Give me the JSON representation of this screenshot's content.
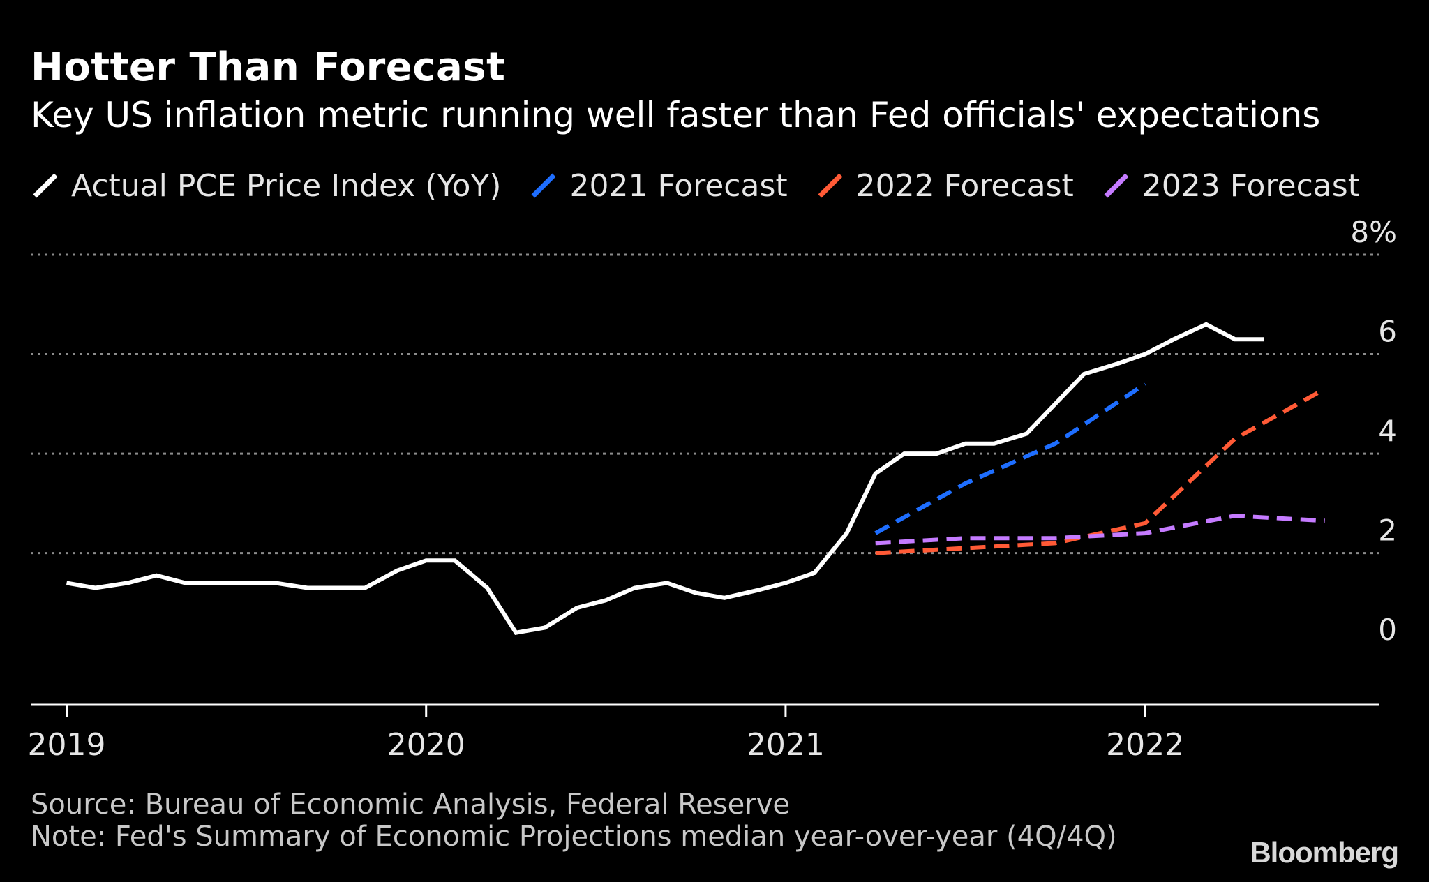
{
  "chart_data": {
    "type": "line",
    "title": "Hotter Than Forecast",
    "subtitle": "Key US inflation metric running well faster than Fed officials' expectations",
    "xlabel": "",
    "ylabel": "",
    "ylim": [
      -1.05,
      8
    ],
    "y_ticks": [
      {
        "value": 8,
        "label": "8%"
      },
      {
        "value": 6,
        "label": "6"
      },
      {
        "value": 4,
        "label": "4"
      },
      {
        "value": 2,
        "label": "2"
      },
      {
        "value": 0,
        "label": "0"
      }
    ],
    "gridlines": [
      8,
      6,
      4,
      2
    ],
    "x_ticks": [
      {
        "value": 2019.0,
        "label": "2019"
      },
      {
        "value": 2020.0,
        "label": "2020"
      },
      {
        "value": 2021.0,
        "label": "2021"
      },
      {
        "value": 2022.0,
        "label": "2022"
      }
    ],
    "xlim": [
      2018.9,
      2022.65
    ],
    "series": [
      {
        "name": "Actual PCE Price Index (YoY)",
        "color": "#ffffff",
        "dashed": false,
        "points": [
          [
            2019.0,
            1.4
          ],
          [
            2019.08,
            1.3
          ],
          [
            2019.17,
            1.4
          ],
          [
            2019.25,
            1.55
          ],
          [
            2019.33,
            1.4
          ],
          [
            2019.42,
            1.4
          ],
          [
            2019.5,
            1.4
          ],
          [
            2019.58,
            1.4
          ],
          [
            2019.67,
            1.3
          ],
          [
            2019.75,
            1.3
          ],
          [
            2019.83,
            1.3
          ],
          [
            2019.92,
            1.65
          ],
          [
            2020.0,
            1.85
          ],
          [
            2020.08,
            1.85
          ],
          [
            2020.17,
            1.3
          ],
          [
            2020.25,
            0.4
          ],
          [
            2020.33,
            0.5
          ],
          [
            2020.42,
            0.9
          ],
          [
            2020.5,
            1.05
          ],
          [
            2020.58,
            1.3
          ],
          [
            2020.67,
            1.4
          ],
          [
            2020.75,
            1.2
          ],
          [
            2020.83,
            1.1
          ],
          [
            2020.92,
            1.25
          ],
          [
            2021.0,
            1.4
          ],
          [
            2021.08,
            1.6
          ],
          [
            2021.17,
            2.4
          ],
          [
            2021.25,
            3.6
          ],
          [
            2021.33,
            4.0
          ],
          [
            2021.42,
            4.0
          ],
          [
            2021.5,
            4.2
          ],
          [
            2021.58,
            4.2
          ],
          [
            2021.67,
            4.4
          ],
          [
            2021.75,
            5.0
          ],
          [
            2021.83,
            5.6
          ],
          [
            2021.92,
            5.8
          ],
          [
            2022.0,
            6.0
          ],
          [
            2022.08,
            6.3
          ],
          [
            2022.17,
            6.6
          ],
          [
            2022.25,
            6.3
          ],
          [
            2022.33,
            6.3
          ]
        ]
      },
      {
        "name": "2021 Forecast",
        "color": "#1e6eff",
        "dashed": true,
        "points": [
          [
            2021.25,
            2.4
          ],
          [
            2021.5,
            3.4
          ],
          [
            2021.75,
            4.2
          ],
          [
            2022.0,
            5.4
          ]
        ]
      },
      {
        "name": "2022 Forecast",
        "color": "#ff5a36",
        "dashed": true,
        "points": [
          [
            2021.25,
            2.0
          ],
          [
            2021.5,
            2.1
          ],
          [
            2021.75,
            2.2
          ],
          [
            2022.0,
            2.6
          ],
          [
            2022.25,
            4.3
          ],
          [
            2022.5,
            5.3
          ]
        ]
      },
      {
        "name": "2023 Forecast",
        "color": "#c57bff",
        "dashed": true,
        "points": [
          [
            2021.25,
            2.2
          ],
          [
            2021.5,
            2.3
          ],
          [
            2021.75,
            2.3
          ],
          [
            2022.0,
            2.4
          ],
          [
            2022.25,
            2.75
          ],
          [
            2022.5,
            2.65
          ]
        ]
      }
    ]
  },
  "legend": [
    {
      "label": "Actual PCE Price Index (YoY)",
      "color": "#ffffff"
    },
    {
      "label": "2021 Forecast",
      "color": "#1e6eff"
    },
    {
      "label": "2022 Forecast",
      "color": "#ff5a36"
    },
    {
      "label": "2023 Forecast",
      "color": "#c57bff"
    }
  ],
  "footer": {
    "source": "Source: Bureau of Economic Analysis, Federal Reserve",
    "note": "Note: Fed's Summary of Economic Projections median year-over-year (4Q/4Q)",
    "brand": "Bloomberg"
  },
  "colors": {
    "background": "#000000",
    "grid": "#8c8c8c",
    "axis": "#ffffff",
    "tick_text": "#e6e6e6"
  }
}
